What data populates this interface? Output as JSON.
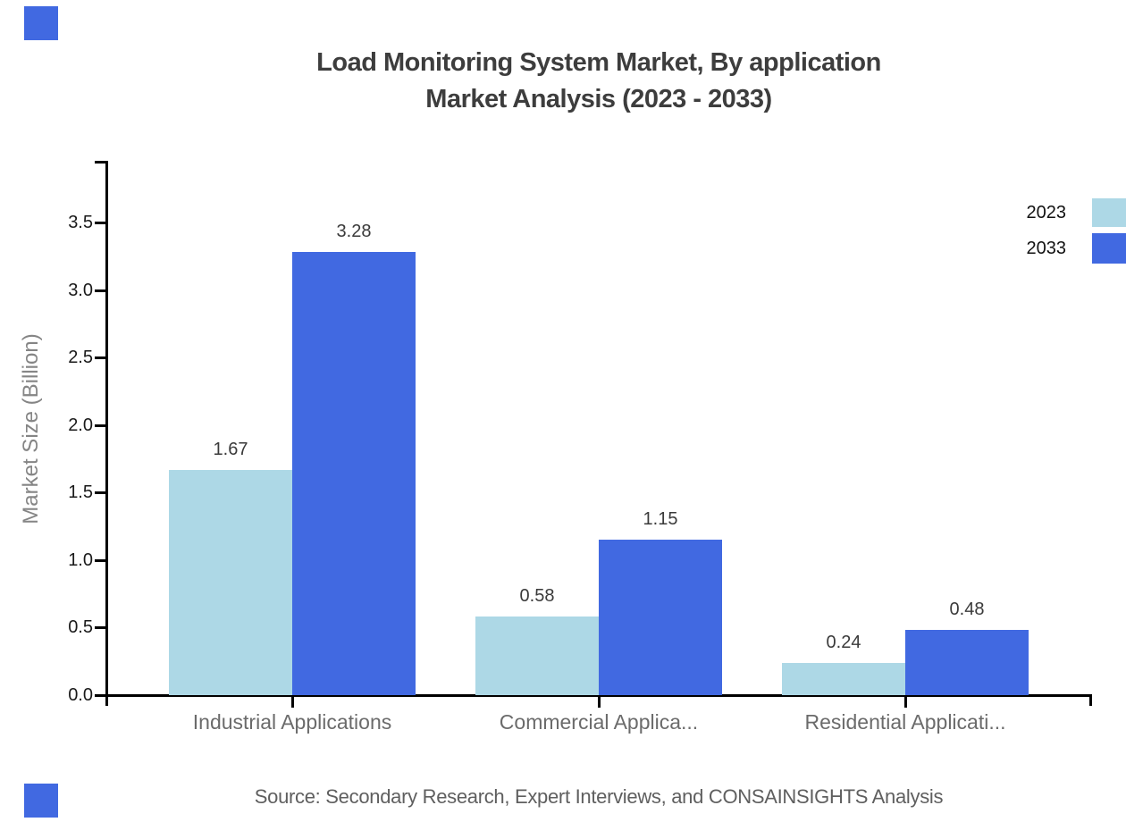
{
  "title": {
    "line1": "Load Monitoring System Market, By application",
    "line2": "Market Analysis (2023 - 2033)"
  },
  "source_text": "Source: Secondary Research, Expert Interviews, and CONSAINSIGHTS Analysis",
  "legend": {
    "items": [
      {
        "label": "2023",
        "color": "#ADD8E6"
      },
      {
        "label": "2033",
        "color": "#4169E1"
      }
    ]
  },
  "chart_data": {
    "type": "bar",
    "categories": [
      "Industrial Applications",
      "Commercial Applica...",
      "Residential Applicati..."
    ],
    "series": [
      {
        "name": "2023",
        "color": "#ADD8E6",
        "values": [
          1.67,
          0.58,
          0.24
        ]
      },
      {
        "name": "2033",
        "color": "#4169E1",
        "values": [
          3.28,
          1.15,
          0.48
        ]
      }
    ],
    "title": "Load Monitoring System Market, By application Market Analysis (2023 - 2033)",
    "xlabel": "",
    "ylabel": "Market Size (Billion)",
    "ylim": [
      0,
      3.95
    ],
    "yticks": [
      0.0,
      0.5,
      1.0,
      1.5,
      2.0,
      2.5,
      3.0,
      3.5
    ],
    "ytick_format": "one_decimal",
    "value_label_format": "two_decimals",
    "grid": false,
    "legend_position": "top-right",
    "value_labels": true
  },
  "decorations": {
    "corner_square_color": "#4169E1"
  },
  "colors": {
    "background": "#ffffff",
    "axis": "#000000",
    "title_text": "#3d3d3d",
    "tick_text": "#1a1a1a",
    "category_text": "#6b6b6b",
    "value_text": "#3a3a3a",
    "ylabel_text": "#858585",
    "source_text": "#5f5f5f"
  }
}
